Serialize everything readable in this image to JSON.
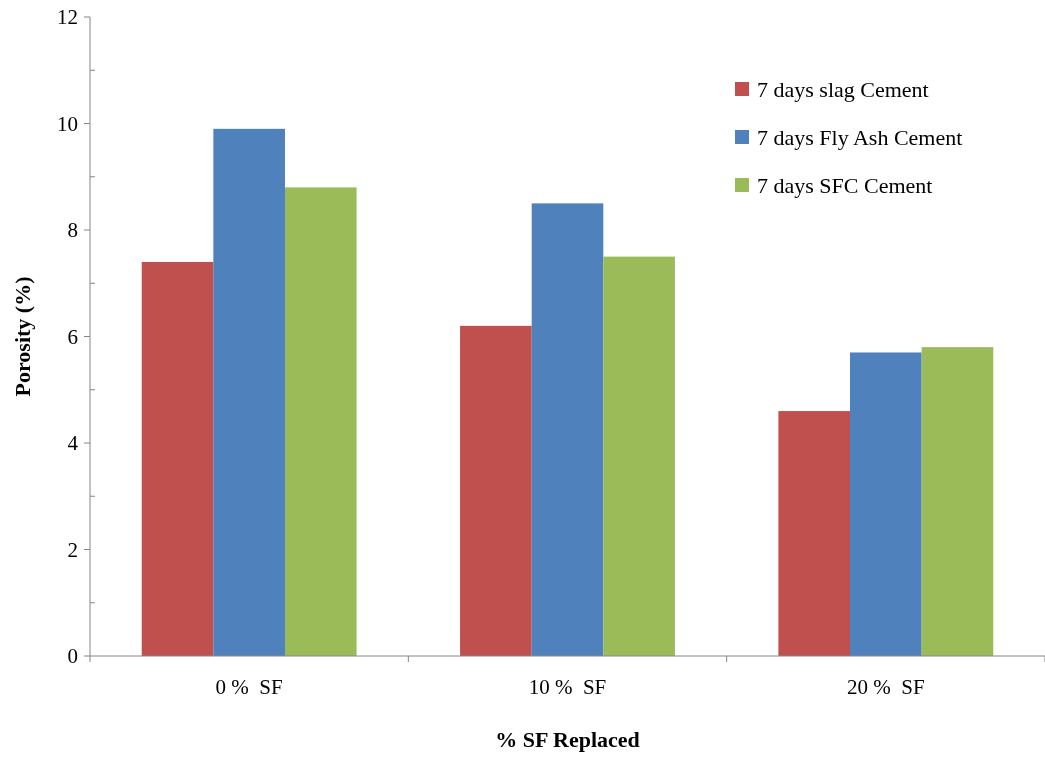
{
  "chart_data": {
    "type": "bar",
    "xlabel": "% SF Replaced",
    "ylabel": "Porosity (%)",
    "categories": [
      "0 %  SF",
      "10 %  SF",
      "20 %  SF"
    ],
    "series": [
      {
        "name": "7 days slag Cement",
        "color": "#c0504d",
        "values": [
          7.4,
          6.2,
          4.6
        ]
      },
      {
        "name": "7 days Fly Ash Cement",
        "color": "#4f81bd",
        "values": [
          9.9,
          8.5,
          5.7
        ]
      },
      {
        "name": "7 days SFC Cement",
        "color": "#9bbb59",
        "values": [
          8.8,
          7.5,
          5.8
        ]
      }
    ],
    "ylim": [
      0,
      12
    ],
    "yticks": [
      0,
      {
        "value": 1,
        "label": null
      },
      2,
      {
        "value": 3,
        "label": null
      },
      4,
      {
        "value": 5,
        "label": null
      },
      6,
      {
        "value": 7,
        "label": null
      },
      8,
      {
        "value": 9,
        "label": null
      },
      10,
      {
        "value": 11,
        "label": null
      },
      12
    ],
    "grid": false,
    "legend": "top right"
  }
}
